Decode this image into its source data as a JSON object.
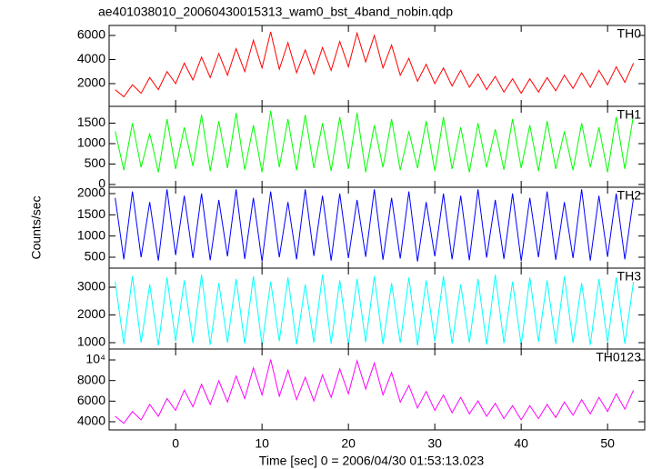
{
  "chart_data": [
    {
      "type": "line",
      "title": "ae401038010_20060430015313_wam0_bst_4band_nobin.qdp",
      "label": "TH0",
      "color": "#ff0000",
      "x": [
        -7,
        -6,
        -5,
        -4,
        -3,
        -2,
        -1,
        0,
        1,
        2,
        3,
        4,
        5,
        6,
        7,
        8,
        9,
        10,
        11,
        12,
        13,
        14,
        15,
        16,
        17,
        18,
        19,
        20,
        21,
        22,
        23,
        24,
        25,
        26,
        27,
        28,
        29,
        30,
        31,
        32,
        33,
        34,
        35,
        36,
        37,
        38,
        39,
        40,
        41,
        42,
        43,
        44,
        45,
        46,
        47,
        48,
        49,
        50,
        51,
        52,
        53
      ],
      "values": [
        1500,
        900,
        1900,
        1200,
        2500,
        1500,
        3000,
        2000,
        3700,
        2300,
        4200,
        2500,
        4500,
        2700,
        4900,
        3000,
        5600,
        3300,
        6300,
        3200,
        5400,
        2900,
        4800,
        2800,
        5000,
        3100,
        5500,
        3400,
        6200,
        3800,
        6000,
        3300,
        5200,
        2700,
        4100,
        2200,
        3600,
        2000,
        3300,
        1800,
        3100,
        1700,
        2800,
        1500,
        2600,
        1300,
        2400,
        1200,
        2400,
        1300,
        2500,
        1400,
        2700,
        1600,
        2900,
        1700,
        3100,
        1900,
        3400,
        2100,
        3700
      ],
      "xlim": [
        -7.7,
        54.3
      ],
      "ylim": [
        113,
        6830
      ],
      "yticks": [
        2000,
        4000,
        6000
      ]
    },
    {
      "type": "line",
      "label": "TH1",
      "color": "#00ff00",
      "x": [
        -7,
        -6,
        -5,
        -4,
        -3,
        -2,
        -1,
        0,
        1,
        2,
        3,
        4,
        5,
        6,
        7,
        8,
        9,
        10,
        11,
        12,
        13,
        14,
        15,
        16,
        17,
        18,
        19,
        20,
        21,
        22,
        23,
        24,
        25,
        26,
        27,
        28,
        29,
        30,
        31,
        32,
        33,
        34,
        35,
        36,
        37,
        38,
        39,
        40,
        41,
        42,
        43,
        44,
        45,
        46,
        47,
        48,
        49,
        50,
        51,
        52,
        53
      ],
      "values": [
        1300,
        350,
        1500,
        420,
        1250,
        300,
        1600,
        380,
        1400,
        450,
        1700,
        330,
        1550,
        400,
        1750,
        360,
        1450,
        300,
        1800,
        420,
        1600,
        350,
        1700,
        400,
        1500,
        330,
        1650,
        380,
        1750,
        300,
        1450,
        420,
        1600,
        350,
        1300,
        400,
        1550,
        330,
        1650,
        380,
        1400,
        300,
        1500,
        420,
        1350,
        360,
        1600,
        400,
        1450,
        330,
        1550,
        380,
        1300,
        350,
        1500,
        420,
        1400,
        300,
        1650,
        380,
        1700
      ],
      "xlim": [
        -7.7,
        54.3
      ],
      "ylim": [
        -67,
        1911
      ],
      "yticks": [
        0,
        500,
        1000,
        1500
      ]
    },
    {
      "type": "line",
      "label": "TH2",
      "ylabel": "Counts/sec",
      "color": "#0000ff",
      "x": [
        -7,
        -6,
        -5,
        -4,
        -3,
        -2,
        -1,
        0,
        1,
        2,
        3,
        4,
        5,
        6,
        7,
        8,
        9,
        10,
        11,
        12,
        13,
        14,
        15,
        16,
        17,
        18,
        19,
        20,
        21,
        22,
        23,
        24,
        25,
        26,
        27,
        28,
        29,
        30,
        31,
        32,
        33,
        34,
        35,
        36,
        37,
        38,
        39,
        40,
        41,
        42,
        43,
        44,
        45,
        46,
        47,
        48,
        49,
        50,
        51,
        52,
        53
      ],
      "values": [
        1900,
        450,
        2050,
        500,
        1800,
        420,
        2100,
        550,
        1950,
        480,
        2000,
        430,
        1850,
        520,
        2100,
        460,
        1900,
        400,
        2050,
        500,
        1800,
        450,
        2100,
        530,
        1950,
        420,
        2000,
        480,
        1850,
        510,
        2100,
        440,
        1900,
        470,
        2050,
        400,
        1800,
        520,
        2000,
        450,
        1950,
        430,
        2100,
        490,
        1850,
        460,
        2000,
        410,
        1900,
        500,
        2050,
        440,
        1800,
        480,
        2100,
        420,
        1950,
        510,
        2000,
        450,
        1900
      ],
      "xlim": [
        -7.7,
        54.3
      ],
      "ylim": [
        243,
        2150
      ],
      "yticks": [
        500,
        1000,
        1500,
        2000
      ]
    },
    {
      "type": "line",
      "label": "TH3",
      "color": "#00ffff",
      "x": [
        -7,
        -6,
        -5,
        -4,
        -3,
        -2,
        -1,
        0,
        1,
        2,
        3,
        4,
        5,
        6,
        7,
        8,
        9,
        10,
        11,
        12,
        13,
        14,
        15,
        16,
        17,
        18,
        19,
        20,
        21,
        22,
        23,
        24,
        25,
        26,
        27,
        28,
        29,
        30,
        31,
        32,
        33,
        34,
        35,
        36,
        37,
        38,
        39,
        40,
        41,
        42,
        43,
        44,
        45,
        46,
        47,
        48,
        49,
        50,
        51,
        52,
        53
      ],
      "values": [
        3200,
        950,
        3400,
        1000,
        3100,
        900,
        3350,
        1050,
        3250,
        980,
        3450,
        920,
        3150,
        1000,
        3300,
        960,
        3400,
        900,
        3200,
        1050,
        3350,
        940,
        3100,
        1000,
        3450,
        970,
        3250,
        910,
        3300,
        1020,
        3400,
        950,
        3150,
        990,
        3350,
        900,
        3250,
        1040,
        3400,
        960,
        3100,
        1000,
        3300,
        930,
        3450,
        980,
        3200,
        910,
        3350,
        1030,
        3250,
        950,
        3400,
        990,
        3150,
        920,
        3300,
        1010,
        3350,
        960,
        3200
      ],
      "xlim": [
        -7.7,
        54.3
      ],
      "ylim": [
        770,
        3689
      ],
      "yticks": [
        1000,
        2000,
        3000
      ]
    },
    {
      "type": "line",
      "label": "TH0123",
      "xlabel": "Time [sec] 0 = 2006/04/30 01:53:13.023",
      "color": "#ff00ff",
      "x": [
        -7,
        -6,
        -5,
        -4,
        -3,
        -2,
        -1,
        0,
        1,
        2,
        3,
        4,
        5,
        6,
        7,
        8,
        9,
        10,
        11,
        12,
        13,
        14,
        15,
        16,
        17,
        18,
        19,
        20,
        21,
        22,
        23,
        24,
        25,
        26,
        27,
        28,
        29,
        30,
        31,
        32,
        33,
        34,
        35,
        36,
        37,
        38,
        39,
        40,
        41,
        42,
        43,
        44,
        45,
        46,
        47,
        48,
        49,
        50,
        51,
        52,
        53
      ],
      "values": [
        4530,
        3840,
        4990,
        4180,
        5680,
        4530,
        6250,
        5100,
        7060,
        5450,
        7630,
        5680,
        7980,
        5910,
        8440,
        6250,
        9240,
        6600,
        10050,
        6480,
        9010,
        6140,
        8320,
        6020,
        8550,
        6370,
        9130,
        6710,
        9930,
        7170,
        9700,
        6600,
        8780,
        5910,
        7520,
        5330,
        6940,
        5100,
        6600,
        4870,
        6370,
        4760,
        6020,
        4530,
        5790,
        4300,
        5560,
        4180,
        5560,
        4300,
        5680,
        4410,
        5910,
        4640,
        6140,
        4760,
        6370,
        4990,
        6710,
        5220,
        7060
      ],
      "xlim": [
        -7.7,
        54.3
      ],
      "ylim": [
        3206,
        11060
      ],
      "yticks": [
        4000,
        6000,
        8000,
        {
          "value": 10000,
          "label": "10⁴"
        }
      ],
      "xticks": [
        0,
        10,
        20,
        30,
        40,
        50
      ]
    }
  ]
}
